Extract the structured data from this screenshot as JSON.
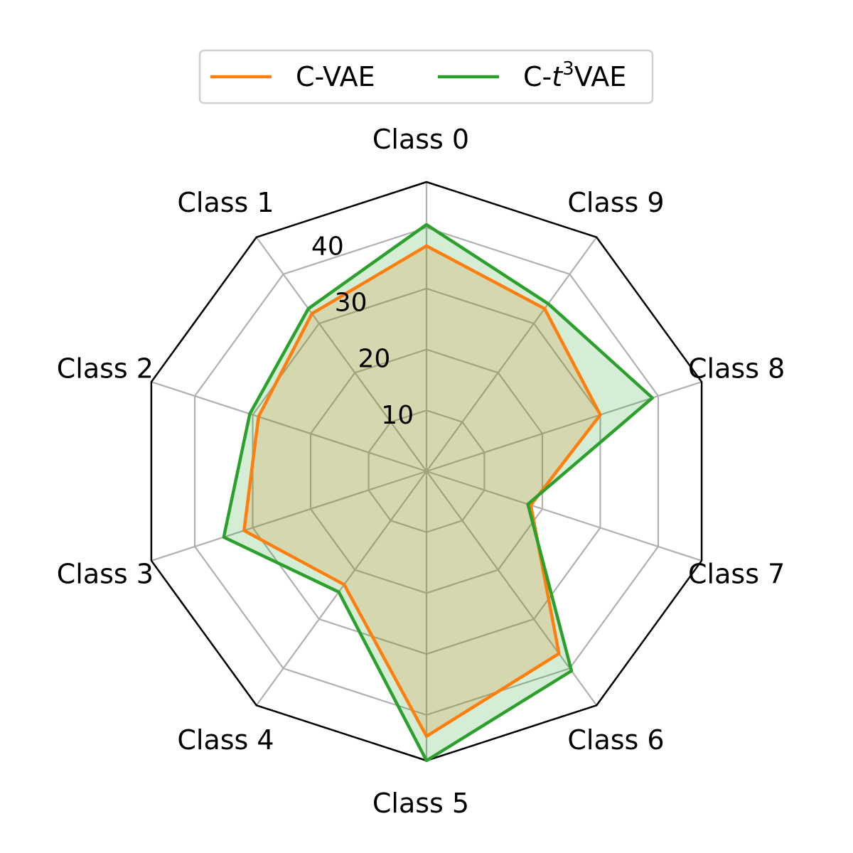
{
  "chart_data": {
    "type": "radar",
    "categories": [
      "Class 0",
      "Class 1",
      "Class 2",
      "Class 3",
      "Class 4",
      "Class 5",
      "Class 6",
      "Class 7",
      "Class 8",
      "Class 9"
    ],
    "rlim": [
      0,
      47.5
    ],
    "rticks": [
      10,
      20,
      30,
      40
    ],
    "rtick_labels": [
      "10",
      "20",
      "30",
      "40"
    ],
    "grid": true,
    "legend": {
      "placement": "top-center",
      "columns": 2
    },
    "series": [
      {
        "name": "C-VAE",
        "name_base": "C-",
        "name_var": "t",
        "name_sup": "",
        "name_tail": "VAE",
        "values": [
          37.0,
          32.0,
          29.0,
          31.5,
          23.0,
          43.5,
          37.0,
          18.0,
          30.0,
          33.0
        ],
        "color": "#ff7f0e",
        "fill": "#ff7f0e",
        "fill_opacity": 0.2
      },
      {
        "name": "C-t3VAE",
        "name_base": "C-",
        "name_var": "t",
        "name_sup": "3",
        "name_tail": "VAE",
        "values": [
          40.5,
          33.0,
          30.5,
          35.0,
          24.5,
          47.5,
          40.5,
          17.5,
          39.0,
          34.0
        ],
        "color": "#2ca02c",
        "fill": "#2ca02c",
        "fill_opacity": 0.2
      }
    ]
  }
}
